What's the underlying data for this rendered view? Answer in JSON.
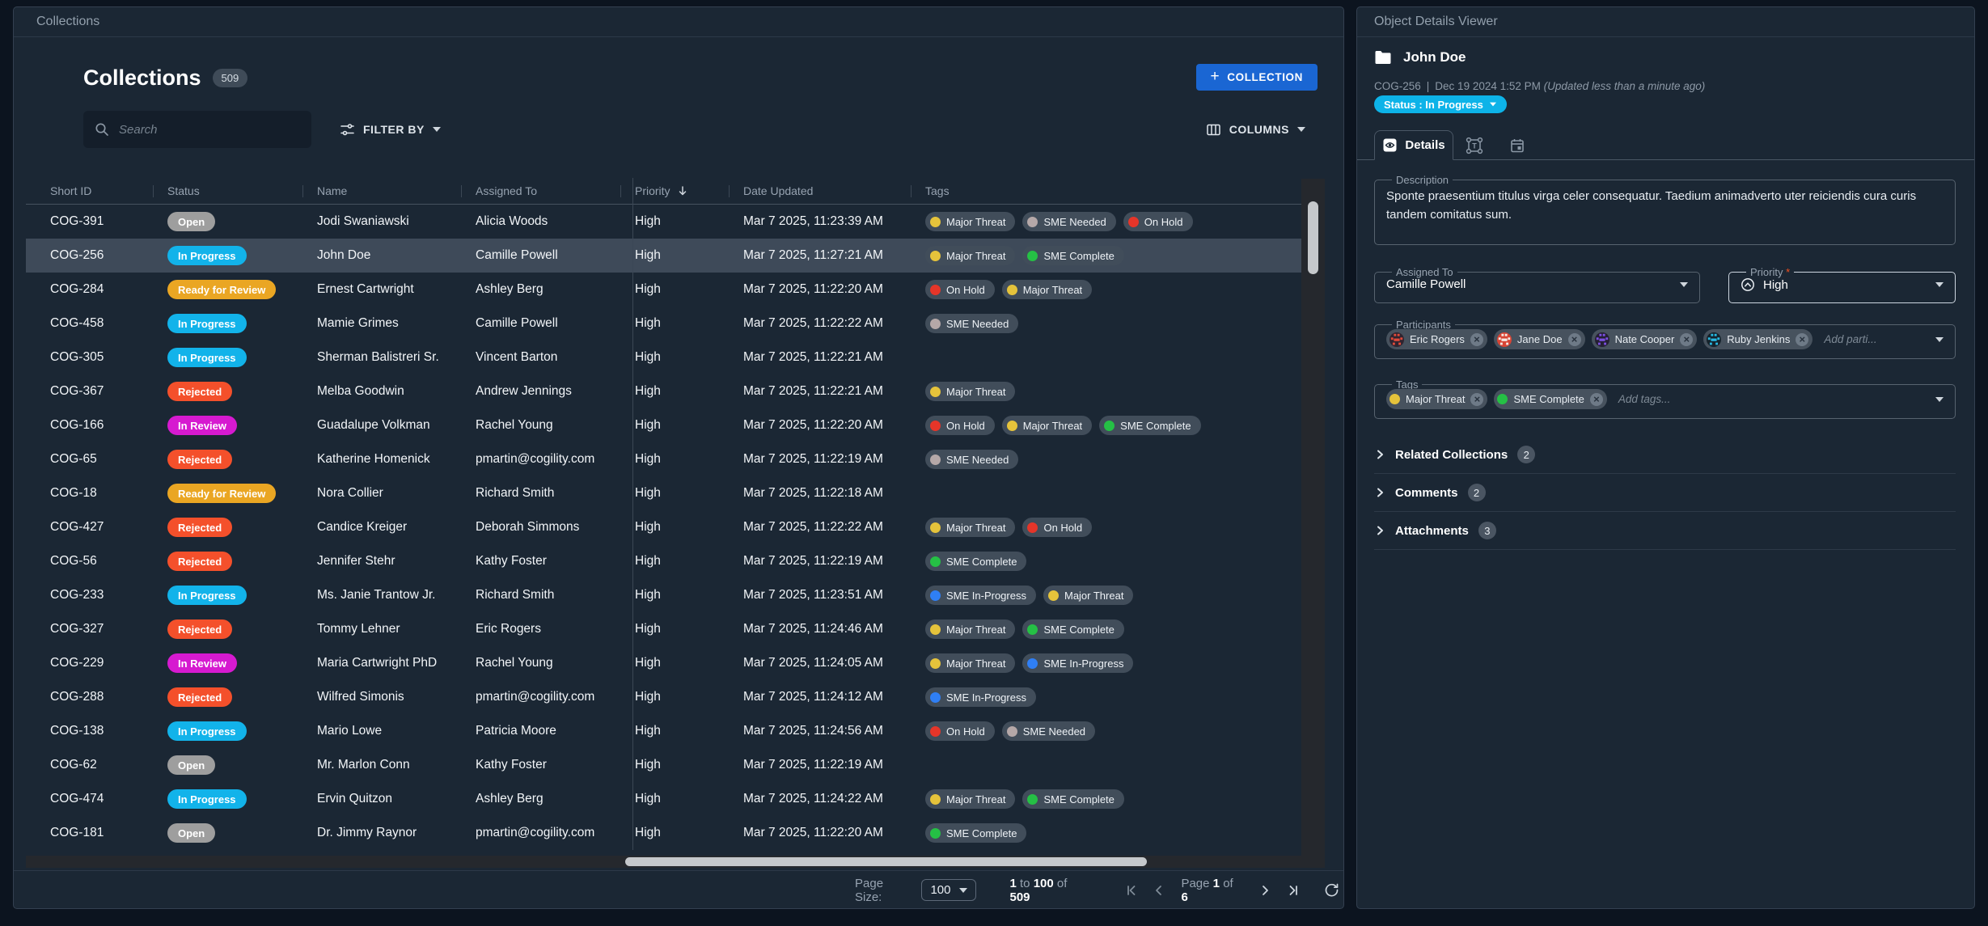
{
  "colors": {
    "status": {
      "Open": "#9e9e9e",
      "In Progress": "#12b3ea",
      "Ready for Review": "#eaa623",
      "Rejected": "#f4502b",
      "In Review": "#d61ad0"
    },
    "tag": {
      "Major Threat": "#e5c33b",
      "SME Needed": "#b5a8a8",
      "On Hold": "#e53529",
      "SME Complete": "#25c045",
      "SME In-Progress": "#2f7ff5"
    },
    "accent_blue": "#1a66d3",
    "status_pill_cyan": "#0db3e8"
  },
  "left_panel": {
    "header_title": "Collections",
    "heading": {
      "title": "Collections",
      "count": "509"
    },
    "add_button": {
      "plus": "+",
      "label": "COLLECTION"
    },
    "search": {
      "placeholder": "Search"
    },
    "filter_button": {
      "label": "FILTER BY"
    },
    "columns_button": {
      "label": "COLUMNS"
    },
    "table": {
      "columns": [
        "Short ID",
        "Status",
        "Name",
        "Assigned To",
        "Priority",
        "Date Updated",
        "Tags"
      ],
      "sorted_column": "Priority",
      "rows": [
        {
          "id": "COG-391",
          "status": "Open",
          "name": "Jodi Swaniawski",
          "assigned": "Alicia Woods",
          "priority": "High",
          "date": "Mar 7 2025, 11:23:39 AM",
          "tags": [
            "Major Threat",
            "SME Needed",
            "On Hold"
          ],
          "selected": false
        },
        {
          "id": "COG-256",
          "status": "In Progress",
          "name": "John Doe",
          "assigned": "Camille Powell",
          "priority": "High",
          "date": "Mar 7 2025, 11:27:21 AM",
          "tags": [
            "Major Threat",
            "SME Complete"
          ],
          "selected": true
        },
        {
          "id": "COG-284",
          "status": "Ready for Review",
          "name": "Ernest Cartwright",
          "assigned": "Ashley Berg",
          "priority": "High",
          "date": "Mar 7 2025, 11:22:20 AM",
          "tags": [
            "On Hold",
            "Major Threat"
          ],
          "selected": false
        },
        {
          "id": "COG-458",
          "status": "In Progress",
          "name": "Mamie Grimes",
          "assigned": "Camille Powell",
          "priority": "High",
          "date": "Mar 7 2025, 11:22:22 AM",
          "tags": [
            "SME Needed"
          ],
          "selected": false
        },
        {
          "id": "COG-305",
          "status": "In Progress",
          "name": "Sherman Balistreri Sr.",
          "assigned": "Vincent Barton",
          "priority": "High",
          "date": "Mar 7 2025, 11:22:21 AM",
          "tags": [],
          "selected": false
        },
        {
          "id": "COG-367",
          "status": "Rejected",
          "name": "Melba Goodwin",
          "assigned": "Andrew Jennings",
          "priority": "High",
          "date": "Mar 7 2025, 11:22:21 AM",
          "tags": [
            "Major Threat"
          ],
          "selected": false
        },
        {
          "id": "COG-166",
          "status": "In Review",
          "name": "Guadalupe Volkman",
          "assigned": "Rachel Young",
          "priority": "High",
          "date": "Mar 7 2025, 11:22:20 AM",
          "tags": [
            "On Hold",
            "Major Threat",
            "SME Complete"
          ],
          "selected": false
        },
        {
          "id": "COG-65",
          "status": "Rejected",
          "name": "Katherine Homenick",
          "assigned": "pmartin@cogility.com",
          "priority": "High",
          "date": "Mar 7 2025, 11:22:19 AM",
          "tags": [
            "SME Needed"
          ],
          "selected": false
        },
        {
          "id": "COG-18",
          "status": "Ready for Review",
          "name": "Nora Collier",
          "assigned": "Richard Smith",
          "priority": "High",
          "date": "Mar 7 2025, 11:22:18 AM",
          "tags": [],
          "selected": false
        },
        {
          "id": "COG-427",
          "status": "Rejected",
          "name": "Candice Kreiger",
          "assigned": "Deborah Simmons",
          "priority": "High",
          "date": "Mar 7 2025, 11:22:22 AM",
          "tags": [
            "Major Threat",
            "On Hold"
          ],
          "selected": false
        },
        {
          "id": "COG-56",
          "status": "Rejected",
          "name": "Jennifer Stehr",
          "assigned": "Kathy Foster",
          "priority": "High",
          "date": "Mar 7 2025, 11:22:19 AM",
          "tags": [
            "SME Complete"
          ],
          "selected": false
        },
        {
          "id": "COG-233",
          "status": "In Progress",
          "name": "Ms. Janie Trantow Jr.",
          "assigned": "Richard Smith",
          "priority": "High",
          "date": "Mar 7 2025, 11:23:51 AM",
          "tags": [
            "SME In-Progress",
            "Major Threat"
          ],
          "selected": false
        },
        {
          "id": "COG-327",
          "status": "Rejected",
          "name": "Tommy Lehner",
          "assigned": "Eric Rogers",
          "priority": "High",
          "date": "Mar 7 2025, 11:24:46 AM",
          "tags": [
            "Major Threat",
            "SME Complete"
          ],
          "selected": false
        },
        {
          "id": "COG-229",
          "status": "In Review",
          "name": "Maria Cartwright PhD",
          "assigned": "Rachel Young",
          "priority": "High",
          "date": "Mar 7 2025, 11:24:05 AM",
          "tags": [
            "Major Threat",
            "SME In-Progress"
          ],
          "selected": false
        },
        {
          "id": "COG-288",
          "status": "Rejected",
          "name": "Wilfred Simonis",
          "assigned": "pmartin@cogility.com",
          "priority": "High",
          "date": "Mar 7 2025, 11:24:12 AM",
          "tags": [
            "SME In-Progress"
          ],
          "selected": false
        },
        {
          "id": "COG-138",
          "status": "In Progress",
          "name": "Mario Lowe",
          "assigned": "Patricia Moore",
          "priority": "High",
          "date": "Mar 7 2025, 11:24:56 AM",
          "tags": [
            "On Hold",
            "SME Needed"
          ],
          "selected": false
        },
        {
          "id": "COG-62",
          "status": "Open",
          "name": "Mr. Marlon Conn",
          "assigned": "Kathy Foster",
          "priority": "High",
          "date": "Mar 7 2025, 11:22:19 AM",
          "tags": [],
          "selected": false
        },
        {
          "id": "COG-474",
          "status": "In Progress",
          "name": "Ervin Quitzon",
          "assigned": "Ashley Berg",
          "priority": "High",
          "date": "Mar 7 2025, 11:24:22 AM",
          "tags": [
            "Major Threat",
            "SME Complete"
          ],
          "selected": false
        },
        {
          "id": "COG-181",
          "status": "Open",
          "name": "Dr. Jimmy Raynor",
          "assigned": "pmartin@cogility.com",
          "priority": "High",
          "date": "Mar 7 2025, 11:22:20 AM",
          "tags": [
            "SME Complete"
          ],
          "selected": false
        }
      ]
    },
    "footer": {
      "page_size_label": "Page Size:",
      "page_size_value": "100",
      "range": {
        "from": "1",
        "to_word": "to",
        "to": "100",
        "of_word": "of",
        "total": "509"
      },
      "page": {
        "prefix": "Page",
        "current": "1",
        "of_word": "of",
        "total": "6"
      }
    }
  },
  "right_panel": {
    "header_title": "Object Details Viewer",
    "object": {
      "name": "John Doe",
      "short_id": "COG-256",
      "separator": "|",
      "date": "Dec 19 2024 1:52 PM",
      "updated_note": "(Updated less than a minute ago)",
      "status_chip": "Status : In Progress"
    },
    "tabs": {
      "details_label": "Details"
    },
    "details": {
      "description": {
        "label": "Description",
        "text": "Sponte praesentium titulus virga celer consequatur. Taedium animadverto uter reiciendis cura curis tandem comitatus sum."
      },
      "assigned_to": {
        "label": "Assigned To",
        "value": "Camille Powell"
      },
      "priority": {
        "label": "Priority",
        "required_mark": "*",
        "value": "High"
      },
      "participants": {
        "label": "Participants",
        "placeholder": "Add parti...",
        "chips": [
          {
            "name": "Eric Rogers",
            "avatar_bg": "#2f2430",
            "avatar_fg": "#e04a3a"
          },
          {
            "name": "Jane Doe",
            "avatar_bg": "#d84434",
            "avatar_fg": "#f3e9e4"
          },
          {
            "name": "Nate Cooper",
            "avatar_bg": "#241f33",
            "avatar_fg": "#7b4fe0"
          },
          {
            "name": "Ruby Jenkins",
            "avatar_bg": "#15222b",
            "avatar_fg": "#27b7e0"
          }
        ]
      },
      "tags": {
        "label": "Tags",
        "placeholder": "Add tags...",
        "chips": [
          "Major Threat",
          "SME Complete"
        ]
      },
      "sections": [
        {
          "label": "Related Collections",
          "count": "2"
        },
        {
          "label": "Comments",
          "count": "2"
        },
        {
          "label": "Attachments",
          "count": "3"
        }
      ]
    }
  }
}
